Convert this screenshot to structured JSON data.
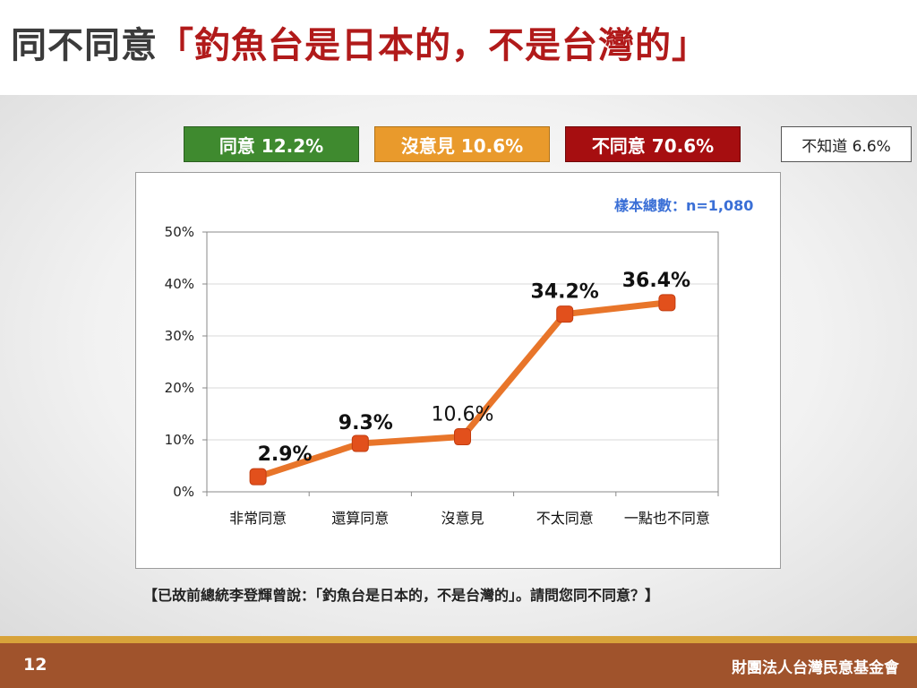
{
  "slide": {
    "title_prefix": "同不同意",
    "title_quote": "「釣魚台是日本的，不是台灣的」",
    "page_number": "12",
    "organization": "財團法人台灣民意基金會",
    "question": "【已故前總統李登輝曾說：「釣魚台是日本的，不是台灣的」。請問您同不同意？】",
    "sample_size": "樣本總數：n=1,080"
  },
  "legend": {
    "agree": "同意 12.2%",
    "no_opinion": "沒意見 10.6%",
    "disagree": "不同意 70.6%",
    "dont_know": "不知道 6.6%"
  },
  "colors": {
    "line": "#e8752a",
    "marker": "#e2501c",
    "agree": "#3f8a2f",
    "no_opinion": "#e99a2c",
    "disagree": "#a60e10",
    "title_accent": "#b11a1a",
    "footer": "#a0532c",
    "footer_accent": "#d8a33a",
    "sample_text": "#3a6fd6"
  },
  "chart_data": {
    "type": "line",
    "categories": [
      "非常同意",
      "還算同意",
      "沒意見",
      "不太同意",
      "一點也不同意"
    ],
    "values": [
      2.9,
      9.3,
      10.6,
      34.2,
      36.4
    ],
    "data_labels": [
      "2.9%",
      "9.3%",
      "10.6%",
      "34.2%",
      "36.4%"
    ],
    "ylim": [
      0,
      50
    ],
    "yticks": [
      0,
      10,
      20,
      30,
      40,
      50
    ],
    "ytick_labels": [
      "0%",
      "10%",
      "20%",
      "30%",
      "40%",
      "50%"
    ],
    "grid": true,
    "title": "",
    "xlabel": "",
    "ylabel": ""
  }
}
